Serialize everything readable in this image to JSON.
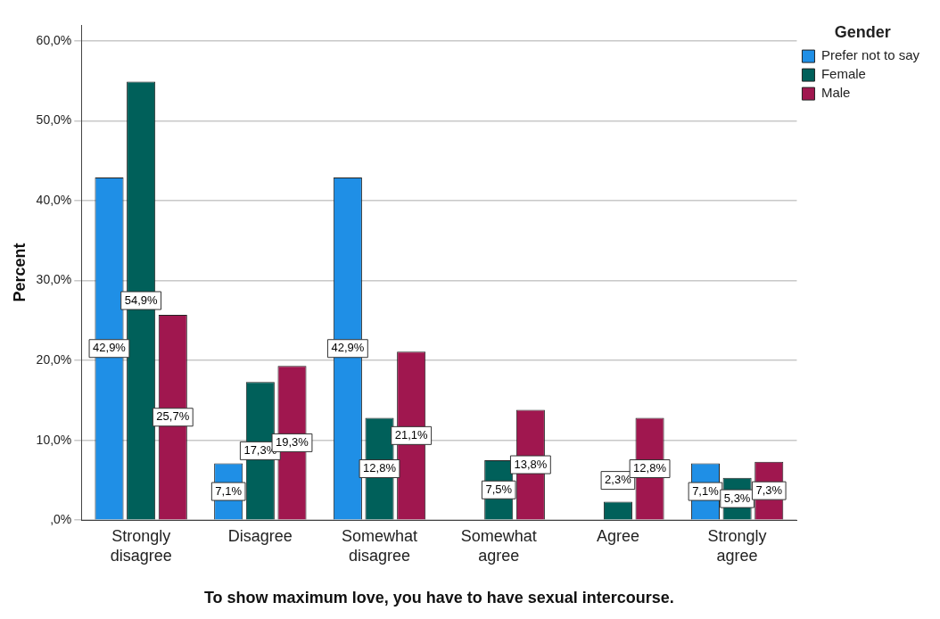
{
  "chart_data": {
    "type": "bar",
    "xlabel": "To show maximum love, you have to have sexual intercourse.",
    "ylabel": "Percent",
    "legend_title": "Gender",
    "legend": "top right",
    "grid": "y",
    "categories": [
      "Strongly disagree",
      "Disagree",
      "Somewhat disagree",
      "Somewhat agree",
      "Agree",
      "Strongly agree"
    ],
    "ylim": [
      0,
      62
    ],
    "yticks": [
      {
        "value": 0,
        "label": ",0%"
      },
      {
        "value": 10,
        "label": "10,0%"
      },
      {
        "value": 20,
        "label": "20,0%"
      },
      {
        "value": 30,
        "label": "30,0%"
      },
      {
        "value": 40,
        "label": "40,0%"
      },
      {
        "value": 50,
        "label": "50,0%"
      },
      {
        "value": 60,
        "label": "60,0%"
      }
    ],
    "series": [
      {
        "name": "Prefer not to say",
        "color": "#1f8fe6",
        "values": [
          42.9,
          7.1,
          42.9,
          0,
          0,
          7.1
        ],
        "value_labels": [
          "42,9%",
          "7,1%",
          "42,9%",
          null,
          null,
          "7,1%"
        ]
      },
      {
        "name": "Female",
        "color": "#00605a",
        "values": [
          54.9,
          17.3,
          12.8,
          7.5,
          2.3,
          5.3
        ],
        "value_labels": [
          "54,9%",
          "17,3%",
          "12,8%",
          "7,5%",
          "2,3%",
          "5,3%"
        ]
      },
      {
        "name": "Male",
        "color": "#a0174f",
        "values": [
          25.7,
          19.3,
          21.1,
          13.8,
          12.8,
          7.3
        ],
        "value_labels": [
          "25,7%",
          "19,3%",
          "21,1%",
          "13,8%",
          "12,8%",
          "7,3%"
        ]
      }
    ]
  }
}
